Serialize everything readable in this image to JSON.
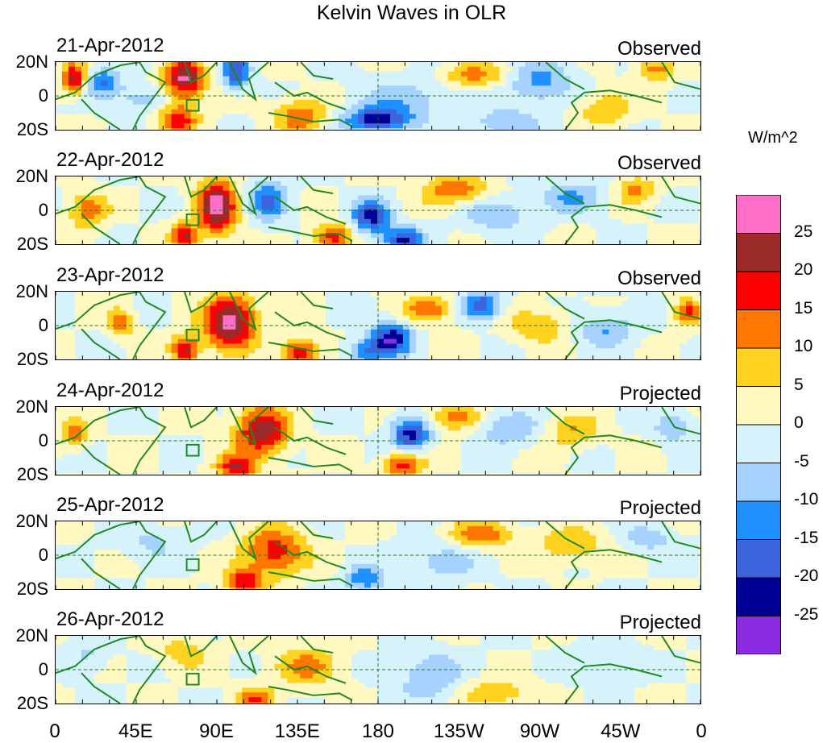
{
  "title": "Kelvin Waves in OLR",
  "units": "W/m^2",
  "lat_labels": [
    "20N",
    "0",
    "20S"
  ],
  "lon_labels": [
    "0",
    "45E",
    "90E",
    "135E",
    "180",
    "135W",
    "90W",
    "45W",
    "0"
  ],
  "panels": [
    {
      "date": "21-Apr-2012",
      "type": "Observed"
    },
    {
      "date": "22-Apr-2012",
      "type": "Observed"
    },
    {
      "date": "23-Apr-2012",
      "type": "Observed"
    },
    {
      "date": "24-Apr-2012",
      "type": "Projected"
    },
    {
      "date": "25-Apr-2012",
      "type": "Projected"
    },
    {
      "date": "26-Apr-2012",
      "type": "Projected"
    }
  ],
  "colorbar": {
    "labels": [
      "25",
      "20",
      "15",
      "10",
      "5",
      "0",
      "-5",
      "-10",
      "-15",
      "-20",
      "-25"
    ],
    "colors": [
      "#ff6ec7",
      "#9b2a2a",
      "#ff0000",
      "#ff7700",
      "#ffd21f",
      "#fff8c0",
      "#d6f2fb",
      "#a6d2ff",
      "#1e90ff",
      "#3c64dc",
      "#000096",
      "#8a2be2"
    ]
  }
}
